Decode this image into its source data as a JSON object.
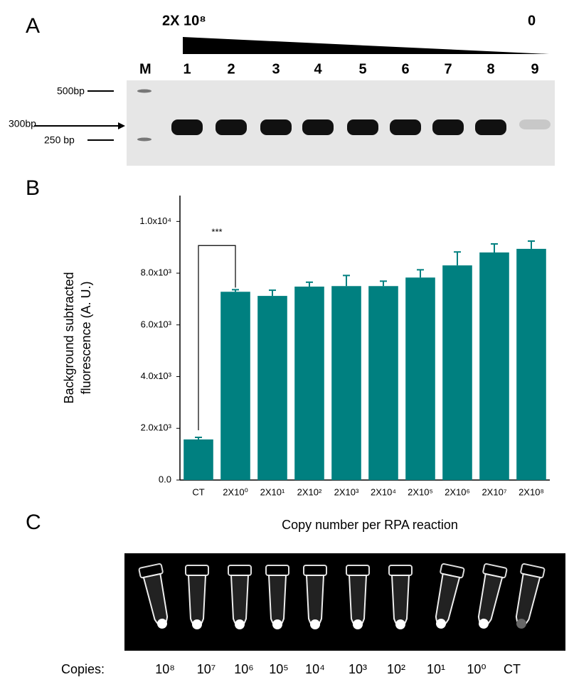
{
  "panel_a": {
    "label": "A",
    "gradient_start": "2X 10⁸",
    "gradient_end": "0",
    "ladder": "M",
    "lanes": [
      "1",
      "2",
      "3",
      "4",
      "5",
      "6",
      "7",
      "8",
      "9"
    ],
    "markers": [
      "500bp",
      "300bp",
      "250 bp"
    ]
  },
  "panel_b": {
    "label": "B"
  },
  "chart_data": {
    "type": "bar",
    "categories": [
      "CT",
      "2X10⁰",
      "2X10¹",
      "2X10²",
      "2X10³",
      "2X10⁴",
      "2X10⁵",
      "2X10⁶",
      "2X10⁷",
      "2X10⁸"
    ],
    "values": [
      1570,
      7280,
      7120,
      7480,
      7500,
      7500,
      7830,
      8300,
      8800,
      8940
    ],
    "errors": [
      80,
      80,
      220,
      170,
      410,
      190,
      300,
      520,
      330,
      300
    ],
    "color": "#008080",
    "xlabel": "Copy number per RPA reaction",
    "ylabel": [
      "Background subtracted",
      "fluorescence (A. U.)"
    ],
    "annotation": "***",
    "ylim": [
      0,
      11000
    ],
    "yticks": [
      {
        "value": 0,
        "label": "0.0"
      },
      {
        "value": 2000,
        "label": "2.0x10³"
      },
      {
        "value": 4000,
        "label": "4.0x10³"
      },
      {
        "value": 6000,
        "label": "6.0x10³"
      },
      {
        "value": 8000,
        "label": "8.0x10³"
      },
      {
        "value": 10000,
        "label": "1.0x10⁴"
      }
    ],
    "grid": false
  },
  "panel_c": {
    "label": "C",
    "row_label": "Copies:",
    "tubes": [
      "10⁸",
      "10⁷",
      "10⁶",
      "10⁵",
      "10⁴",
      "10³",
      "10²",
      "10¹",
      "10⁰",
      "CT"
    ]
  }
}
